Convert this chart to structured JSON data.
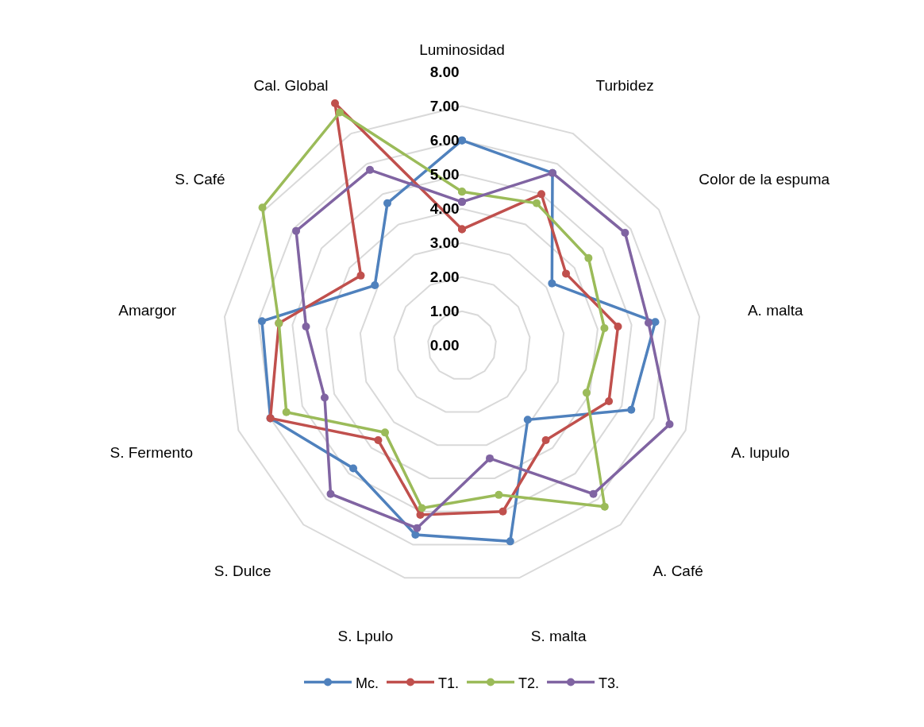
{
  "chart_data": {
    "type": "radar",
    "categories": [
      "Luminosidad",
      "Turbidez",
      "Color de la espuma",
      "A. malta",
      "A. lupulo",
      "A. Café",
      "S. malta",
      "S. Lpulo",
      "S. Dulce",
      "S. Fermento",
      "Amargor",
      "S. Café",
      "Cal. Global"
    ],
    "series": [
      {
        "name": "Mc.",
        "color": "#4f81bd",
        "values": [
          6.0,
          5.7,
          3.2,
          5.7,
          5.3,
          2.9,
          5.9,
          5.7,
          4.8,
          6.0,
          5.9,
          3.1,
          4.7
        ]
      },
      {
        "name": "T1.",
        "color": "#c0504d",
        "values": [
          3.4,
          5.0,
          3.7,
          4.6,
          4.6,
          3.7,
          5.0,
          5.1,
          3.7,
          6.0,
          5.4,
          3.6,
          8.0
        ]
      },
      {
        "name": "T2.",
        "color": "#9bbb59",
        "values": [
          4.5,
          4.7,
          4.5,
          4.2,
          3.9,
          6.3,
          4.5,
          4.9,
          3.4,
          5.5,
          5.4,
          7.1,
          7.7
        ]
      },
      {
        "name": "T3.",
        "color": "#8064a2",
        "values": [
          4.2,
          5.7,
          5.8,
          5.5,
          6.5,
          5.8,
          3.4,
          5.5,
          5.8,
          4.3,
          4.6,
          5.9,
          5.8
        ]
      }
    ],
    "ylim": [
      0,
      8
    ],
    "yticks": [
      {
        "value": 0,
        "label": "0.00"
      },
      {
        "value": 1,
        "label": "1.00"
      },
      {
        "value": 2,
        "label": "2.00"
      },
      {
        "value": 3,
        "label": "3.00"
      },
      {
        "value": 4,
        "label": "4.00"
      },
      {
        "value": 5,
        "label": "5.00"
      },
      {
        "value": 6,
        "label": "6.00"
      },
      {
        "value": 7,
        "label": "7.00"
      },
      {
        "value": 8,
        "label": "8.00"
      }
    ],
    "grid": "y",
    "legend": "bottom",
    "marker": "circle",
    "line_style": "solid"
  }
}
